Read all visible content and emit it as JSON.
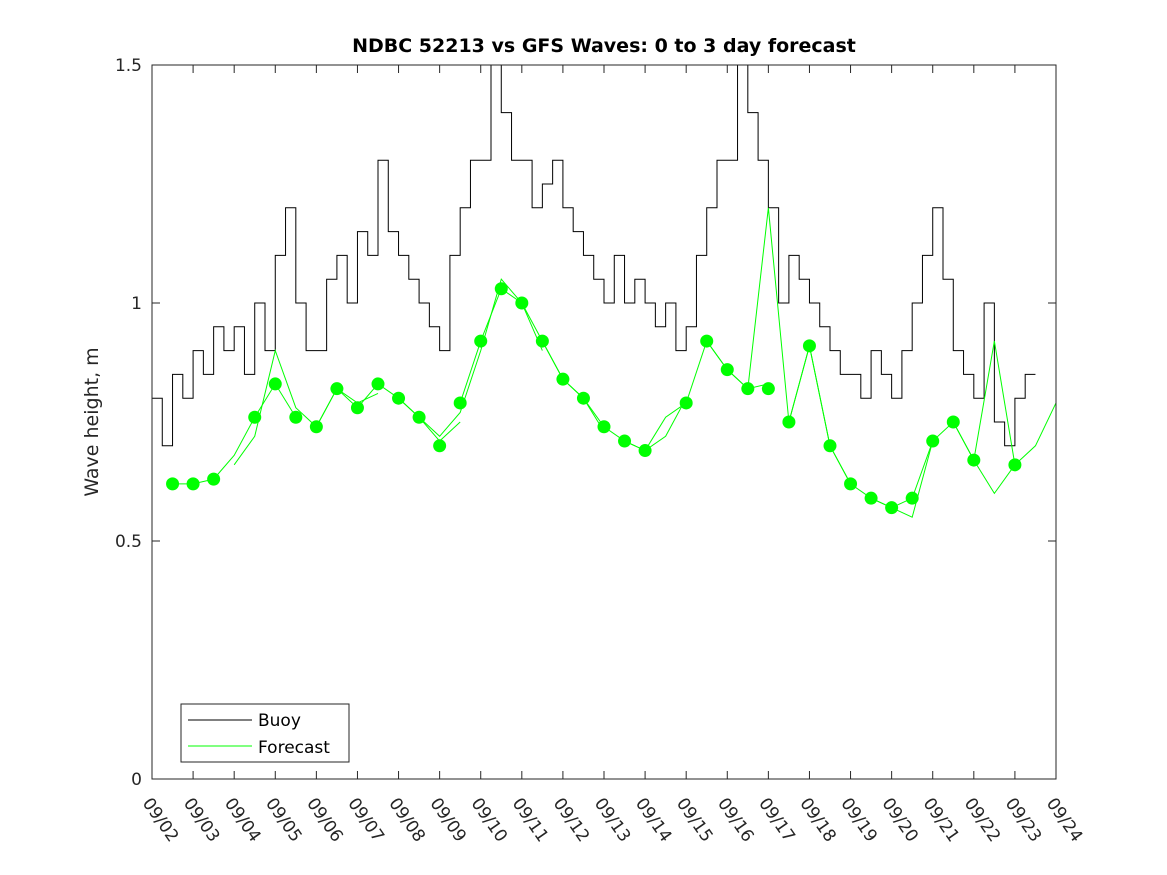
{
  "chart_data": {
    "type": "line",
    "title": "NDBC 52213 vs GFS Waves: 0 to 3 day forecast",
    "xlabel": "",
    "ylabel": "Wave height, m",
    "xlim": [
      0,
      22
    ],
    "ylim": [
      0,
      1.5
    ],
    "x_ticks": [
      {
        "value": 0,
        "label": "09/02"
      },
      {
        "value": 1,
        "label": "09/03"
      },
      {
        "value": 2,
        "label": "09/04"
      },
      {
        "value": 3,
        "label": "09/05"
      },
      {
        "value": 4,
        "label": "09/06"
      },
      {
        "value": 5,
        "label": "09/07"
      },
      {
        "value": 6,
        "label": "09/08"
      },
      {
        "value": 7,
        "label": "09/09"
      },
      {
        "value": 8,
        "label": "09/10"
      },
      {
        "value": 9,
        "label": "09/11"
      },
      {
        "value": 10,
        "label": "09/12"
      },
      {
        "value": 11,
        "label": "09/13"
      },
      {
        "value": 12,
        "label": "09/14"
      },
      {
        "value": 13,
        "label": "09/15"
      },
      {
        "value": 14,
        "label": "09/16"
      },
      {
        "value": 15,
        "label": "09/17"
      },
      {
        "value": 16,
        "label": "09/18"
      },
      {
        "value": 17,
        "label": "09/19"
      },
      {
        "value": 18,
        "label": "09/20"
      },
      {
        "value": 19,
        "label": "09/21"
      },
      {
        "value": 20,
        "label": "09/22"
      },
      {
        "value": 21,
        "label": "09/23"
      },
      {
        "value": 22,
        "label": "09/24"
      }
    ],
    "y_ticks": [
      {
        "value": 0,
        "label": "0"
      },
      {
        "value": 0.5,
        "label": "0.5"
      },
      {
        "value": 1,
        "label": "1"
      },
      {
        "value": 1.5,
        "label": "1.5"
      }
    ],
    "legend": {
      "location": "bottom-left",
      "entries": [
        "Buoy",
        "Forecast"
      ]
    },
    "colors": {
      "buoy": "#000000",
      "forecast": "#00ff00",
      "axes": "#262626"
    },
    "series": [
      {
        "name": "Buoy",
        "color": "#000000",
        "x": [
          0,
          0.25,
          0.5,
          0.75,
          1,
          1.25,
          1.5,
          1.75,
          2,
          2.25,
          2.5,
          2.75,
          3,
          3.25,
          3.5,
          3.75,
          4,
          4.25,
          4.5,
          4.75,
          5,
          5.25,
          5.5,
          5.75,
          6,
          6.25,
          6.5,
          6.75,
          7,
          7.25,
          7.5,
          7.75,
          8,
          8.25,
          8.5,
          8.75,
          9,
          9.25,
          9.5,
          9.75,
          10,
          10.25,
          10.5,
          10.75,
          11,
          11.25,
          11.5,
          11.75,
          12,
          12.25,
          12.5,
          12.75,
          13,
          13.25,
          13.5,
          13.75,
          14,
          14.25,
          14.5,
          14.75,
          15,
          15.25,
          15.5,
          15.75,
          16,
          16.25,
          16.5,
          16.75,
          17,
          17.25,
          17.5,
          17.75,
          18,
          18.25,
          18.5,
          18.75,
          19,
          19.25,
          19.5,
          19.75,
          20,
          20.25,
          20.5,
          20.75,
          21,
          21.25
        ],
        "y": [
          0.8,
          0.7,
          0.85,
          0.8,
          0.9,
          0.85,
          0.95,
          0.9,
          0.95,
          0.85,
          1.0,
          0.9,
          1.1,
          1.2,
          1.0,
          0.9,
          0.9,
          1.05,
          1.1,
          1.0,
          1.15,
          1.1,
          1.3,
          1.15,
          1.1,
          1.05,
          1.0,
          0.95,
          0.9,
          1.1,
          1.2,
          1.3,
          1.3,
          1.5,
          1.4,
          1.3,
          1.3,
          1.2,
          1.25,
          1.3,
          1.2,
          1.15,
          1.1,
          1.05,
          1.0,
          1.1,
          1.0,
          1.05,
          1.0,
          0.95,
          1.0,
          0.9,
          0.95,
          1.1,
          1.2,
          1.3,
          1.3,
          1.5,
          1.4,
          1.3,
          1.2,
          1.0,
          1.1,
          1.05,
          1.0,
          0.95,
          0.9,
          0.85,
          0.85,
          0.8,
          0.9,
          0.85,
          0.8,
          0.9,
          1.0,
          1.1,
          1.2,
          1.05,
          0.9,
          0.85,
          0.8,
          1.0,
          0.75,
          0.7,
          0.8,
          0.85
        ]
      },
      {
        "name": "Forecast",
        "color": "#00ff00",
        "runs": [
          {
            "x": [
              0.5,
              1.0,
              1.5,
              2.0,
              2.5,
              3.0,
              3.5
            ],
            "y": [
              0.62,
              0.62,
              0.63,
              0.68,
              0.76,
              0.83,
              0.76
            ]
          },
          {
            "x": [
              2.0,
              2.5,
              3.0,
              3.5,
              4.0,
              4.5,
              5.0,
              5.5
            ],
            "y": [
              0.66,
              0.72,
              0.9,
              0.78,
              0.74,
              0.82,
              0.79,
              0.81
            ]
          },
          {
            "x": [
              4.0,
              4.5,
              5.0,
              5.5,
              6.0,
              6.5,
              7.0,
              7.5
            ],
            "y": [
              0.74,
              0.82,
              0.78,
              0.83,
              0.8,
              0.76,
              0.71,
              0.75
            ]
          },
          {
            "x": [
              6.0,
              6.5,
              7.0,
              7.5,
              8.0,
              8.5,
              9.0,
              9.5
            ],
            "y": [
              0.8,
              0.76,
              0.72,
              0.77,
              0.9,
              1.05,
              1.0,
              0.9
            ]
          },
          {
            "x": [
              7.5,
              8.0,
              8.5,
              9.0,
              9.5,
              10.0,
              10.5,
              11.0
            ],
            "y": [
              0.79,
              0.92,
              1.03,
              1.0,
              0.92,
              0.84,
              0.8,
              0.73
            ]
          },
          {
            "x": [
              9.5,
              10.0,
              10.5,
              11.0,
              11.5,
              12.0,
              12.5,
              13.0
            ],
            "y": [
              0.92,
              0.84,
              0.8,
              0.74,
              0.71,
              0.69,
              0.72,
              0.8
            ]
          },
          {
            "x": [
              11.5,
              12.0,
              12.5,
              13.0,
              13.5,
              14.0,
              14.5,
              15.0
            ],
            "y": [
              0.71,
              0.69,
              0.76,
              0.79,
              0.92,
              0.86,
              0.82,
              0.83
            ]
          },
          {
            "x": [
              13.5,
              14.0,
              14.5,
              15.0,
              15.5,
              16.0,
              16.5,
              17.0
            ],
            "y": [
              0.92,
              0.86,
              0.82,
              1.2,
              0.75,
              0.91,
              0.7,
              0.62
            ]
          },
          {
            "x": [
              15.5,
              16.0,
              16.5,
              17.0,
              17.5,
              18.0,
              18.5,
              19.0
            ],
            "y": [
              0.75,
              0.91,
              0.7,
              0.62,
              0.59,
              0.57,
              0.55,
              0.71
            ]
          },
          {
            "x": [
              17.5,
              18.0,
              18.5,
              19.0,
              19.5,
              20.0,
              20.5,
              21.0
            ],
            "y": [
              0.59,
              0.57,
              0.59,
              0.71,
              0.75,
              0.67,
              0.6,
              0.66
            ]
          },
          {
            "x": [
              19.5,
              20.0,
              20.5,
              21.0,
              21.5,
              22.0
            ],
            "y": [
              0.75,
              0.67,
              0.92,
              0.66,
              0.7,
              0.79
            ]
          }
        ],
        "markers": {
          "x": [
            0.5,
            1.0,
            1.5,
            2.5,
            3.0,
            3.5,
            4.0,
            4.5,
            5.0,
            5.5,
            6.0,
            6.5,
            7.0,
            7.5,
            8.0,
            8.5,
            9.0,
            9.5,
            10.0,
            10.5,
            11.0,
            11.5,
            12.0,
            13.0,
            13.5,
            14.0,
            14.5,
            15.0,
            15.5,
            16.0,
            16.5,
            17.0,
            17.5,
            18.0,
            18.5,
            19.0,
            19.5,
            20.0,
            21.0
          ],
          "y": [
            0.62,
            0.62,
            0.63,
            0.76,
            0.83,
            0.76,
            0.74,
            0.82,
            0.78,
            0.83,
            0.8,
            0.76,
            0.7,
            0.79,
            0.92,
            1.03,
            1.0,
            0.92,
            0.84,
            0.8,
            0.74,
            0.71,
            0.69,
            0.79,
            0.92,
            0.86,
            0.82,
            0.82,
            0.75,
            0.91,
            0.7,
            0.62,
            0.59,
            0.57,
            0.59,
            0.71,
            0.75,
            0.67,
            0.66
          ]
        }
      }
    ]
  }
}
